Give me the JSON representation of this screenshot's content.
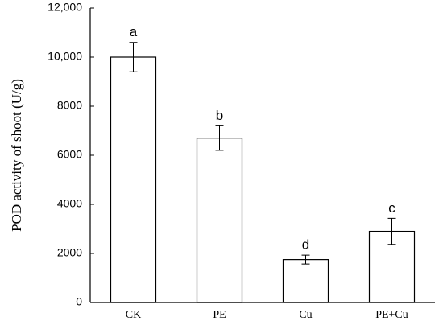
{
  "chart_data": {
    "type": "bar",
    "y_label": "POD activity of shoot (U/g)",
    "categories": [
      "CK",
      "PE",
      "Cu",
      "PE+Cu"
    ],
    "values": [
      10000,
      6700,
      1750,
      2900
    ],
    "errors": [
      600,
      500,
      180,
      530
    ],
    "annotations": [
      "a",
      "b",
      "d",
      "c"
    ],
    "color": "#ffffff",
    "ylim": [
      0,
      12000
    ],
    "yticks": [
      0,
      2000,
      4000,
      6000,
      8000,
      {
        "value": 10000,
        "label": "10,000"
      },
      {
        "value": 12000,
        "label": "12,000"
      }
    ],
    "grid": false
  }
}
